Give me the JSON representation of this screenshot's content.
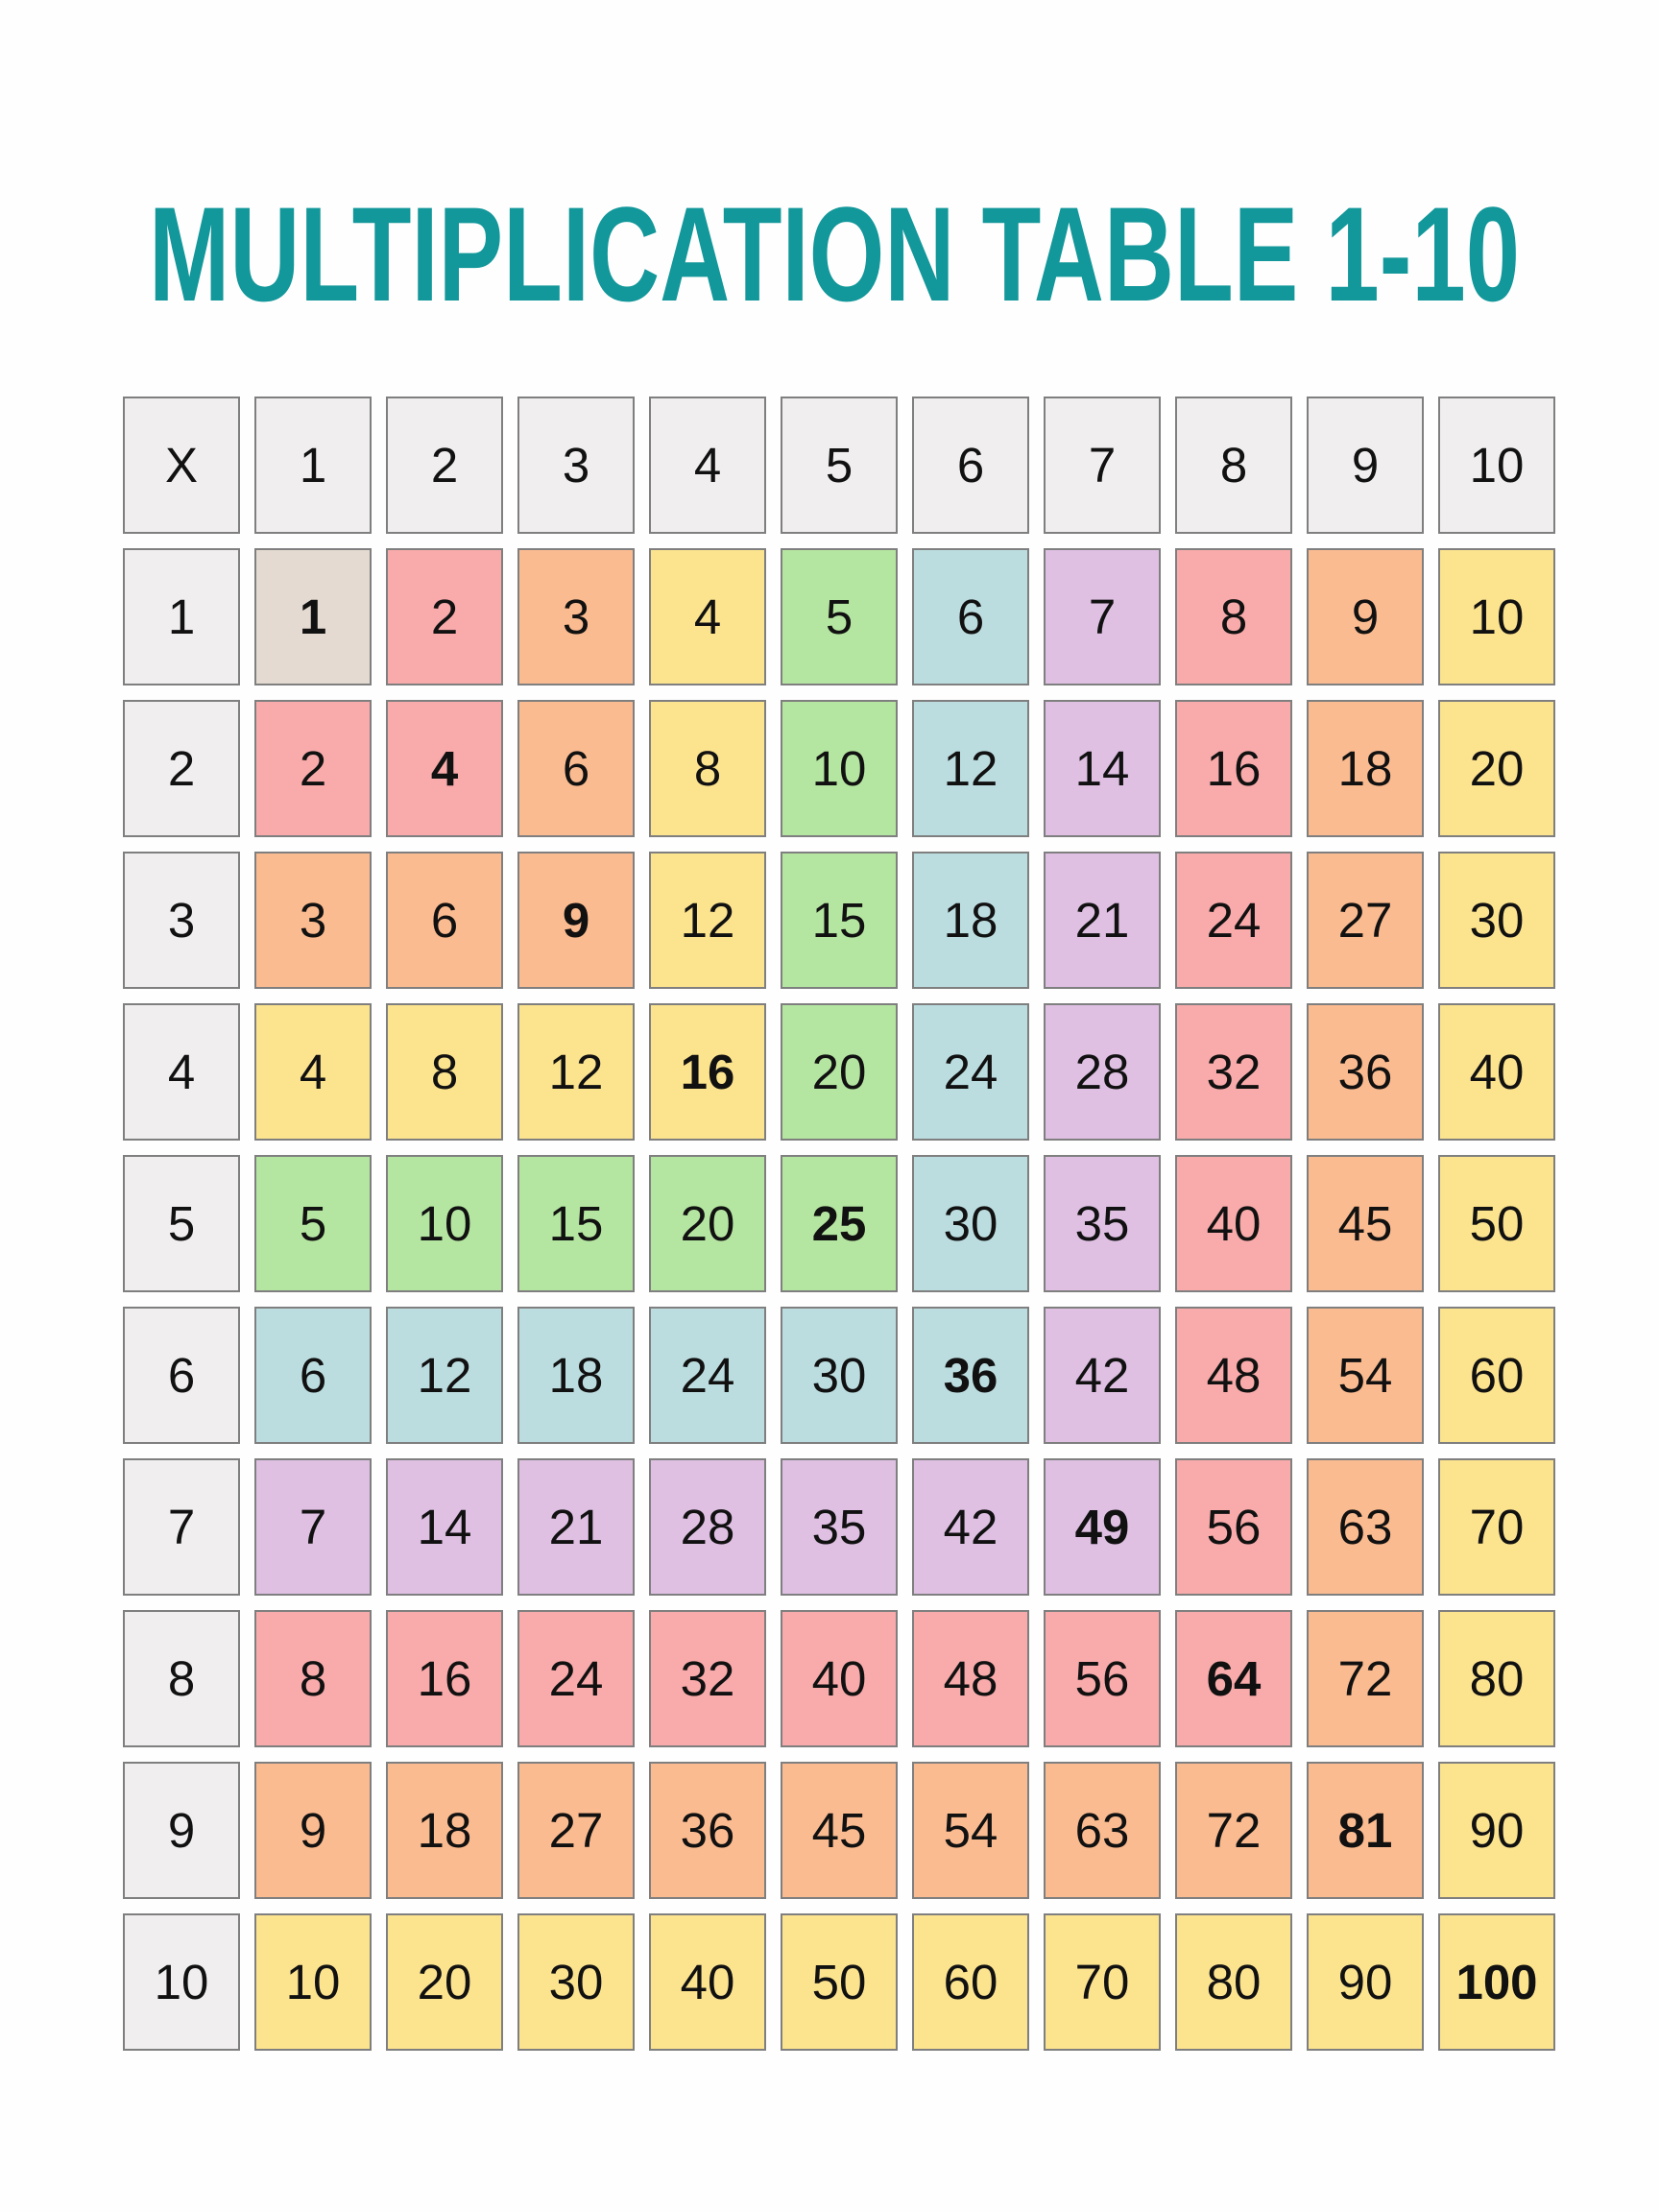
{
  "title": "MULTIPLICATION TABLE 1-10",
  "colors": {
    "title": "#12979a",
    "header": "#f0eeee",
    "border": "#7f7f7f",
    "palette": [
      "#e4dad1",
      "#f9aaaa",
      "#fbbb90",
      "#fce38e",
      "#b5e6a1",
      "#bcdde0",
      "#dfc0e3",
      "#f9aaaa",
      "#fbbb90",
      "#fce38e"
    ]
  },
  "table": {
    "corner": "X",
    "column_headers": [
      "1",
      "2",
      "3",
      "4",
      "5",
      "6",
      "7",
      "8",
      "9",
      "10"
    ],
    "row_headers": [
      "1",
      "2",
      "3",
      "4",
      "5",
      "6",
      "7",
      "8",
      "9",
      "10"
    ],
    "rows": [
      [
        "1",
        "2",
        "3",
        "4",
        "5",
        "6",
        "7",
        "8",
        "9",
        "10"
      ],
      [
        "2",
        "4",
        "6",
        "8",
        "10",
        "12",
        "14",
        "16",
        "18",
        "20"
      ],
      [
        "3",
        "6",
        "9",
        "12",
        "15",
        "18",
        "21",
        "24",
        "27",
        "30"
      ],
      [
        "4",
        "8",
        "12",
        "16",
        "20",
        "24",
        "28",
        "32",
        "36",
        "40"
      ],
      [
        "5",
        "10",
        "15",
        "20",
        "25",
        "30",
        "35",
        "40",
        "45",
        "50"
      ],
      [
        "6",
        "12",
        "18",
        "24",
        "30",
        "36",
        "42",
        "48",
        "54",
        "60"
      ],
      [
        "7",
        "14",
        "21",
        "28",
        "35",
        "42",
        "49",
        "56",
        "63",
        "70"
      ],
      [
        "8",
        "16",
        "24",
        "32",
        "40",
        "48",
        "56",
        "64",
        "72",
        "80"
      ],
      [
        "9",
        "18",
        "27",
        "36",
        "45",
        "54",
        "63",
        "72",
        "81",
        "90"
      ],
      [
        "10",
        "20",
        "30",
        "40",
        "50",
        "60",
        "70",
        "80",
        "90",
        "100"
      ]
    ]
  }
}
